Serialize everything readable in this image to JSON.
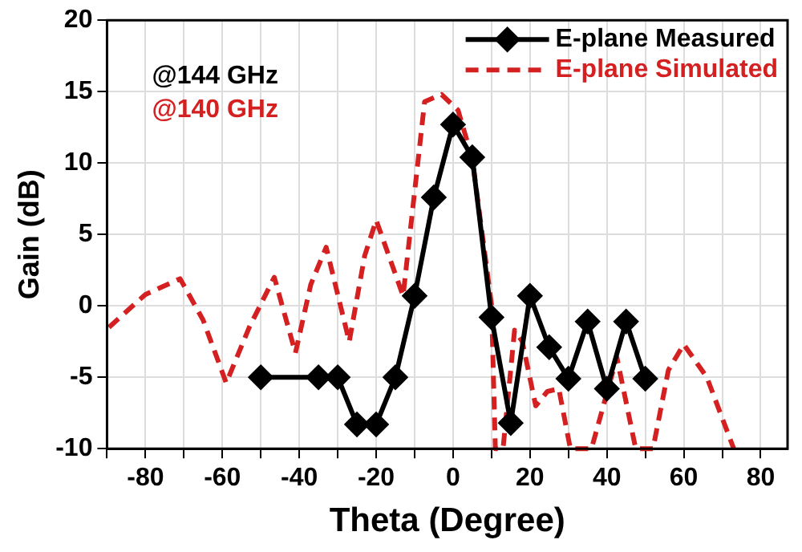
{
  "chart_data": {
    "type": "line",
    "xlabel": "Theta (Degree)",
    "ylabel": "Gain (dB)",
    "annotations": [
      "@144 GHz",
      "@140 GHz"
    ],
    "xlim": [
      -90,
      87
    ],
    "ylim": [
      -10,
      20
    ],
    "xticks": [
      {
        "value": -90,
        "label": null
      },
      -80,
      {
        "value": -70,
        "label": null
      },
      -60,
      {
        "value": -50,
        "label": null
      },
      -40,
      {
        "value": -30,
        "label": null
      },
      -20,
      {
        "value": -10,
        "label": null
      },
      0,
      {
        "value": 10,
        "label": null
      },
      20,
      {
        "value": 30,
        "label": null
      },
      40,
      {
        "value": 50,
        "label": null
      },
      60,
      {
        "value": 70,
        "label": null
      },
      80
    ],
    "yticks": [
      -10,
      -5,
      0,
      5,
      10,
      15,
      20
    ],
    "grid": true,
    "legend": "top right",
    "series": [
      {
        "name": "E-plane Measured",
        "color": "#000000",
        "marker": "diamond",
        "line_style": "solid",
        "x": [
          -50,
          -35,
          -30,
          -25,
          -20,
          -15,
          -10,
          -5,
          0,
          5,
          10,
          15,
          20,
          25,
          30,
          35,
          40,
          45,
          50
        ],
        "values": [
          -5,
          -5,
          -5,
          -8.3,
          -8.3,
          -5,
          0.7,
          7.6,
          12.7,
          10.4,
          -0.8,
          -8.2,
          0.7,
          -2.9,
          -5.1,
          -1.1,
          -5.8,
          -1.1,
          -5.1
        ]
      },
      {
        "name": "E-plane Simulated",
        "color": "#d42020",
        "marker": "none",
        "line_style": "dashed",
        "x": [
          -89.5,
          -80,
          -71,
          -65,
          -59,
          -53,
          -46.5,
          -41,
          -37,
          -33,
          -27,
          -23,
          -20,
          -13,
          -7.4,
          -3,
          1.3,
          5,
          10,
          11,
          13,
          16,
          18,
          21.5,
          24.5,
          27.5,
          30.5,
          33,
          36,
          42.6,
          47.5,
          50,
          52,
          56,
          60,
          66,
          73
        ],
        "values": [
          -1.5,
          0.8,
          1.9,
          -1,
          -5.4,
          -1.5,
          2,
          -3.3,
          1.5,
          4.1,
          -2.5,
          3.5,
          6,
          0.7,
          14.3,
          14.8,
          13.7,
          10.3,
          0.1,
          -10,
          -10,
          -1.7,
          -2.5,
          -7,
          -6,
          -5.8,
          -10,
          -10,
          -10,
          -3.6,
          -10,
          -10,
          -10,
          -4.5,
          -2.7,
          -5,
          -10
        ]
      }
    ]
  }
}
